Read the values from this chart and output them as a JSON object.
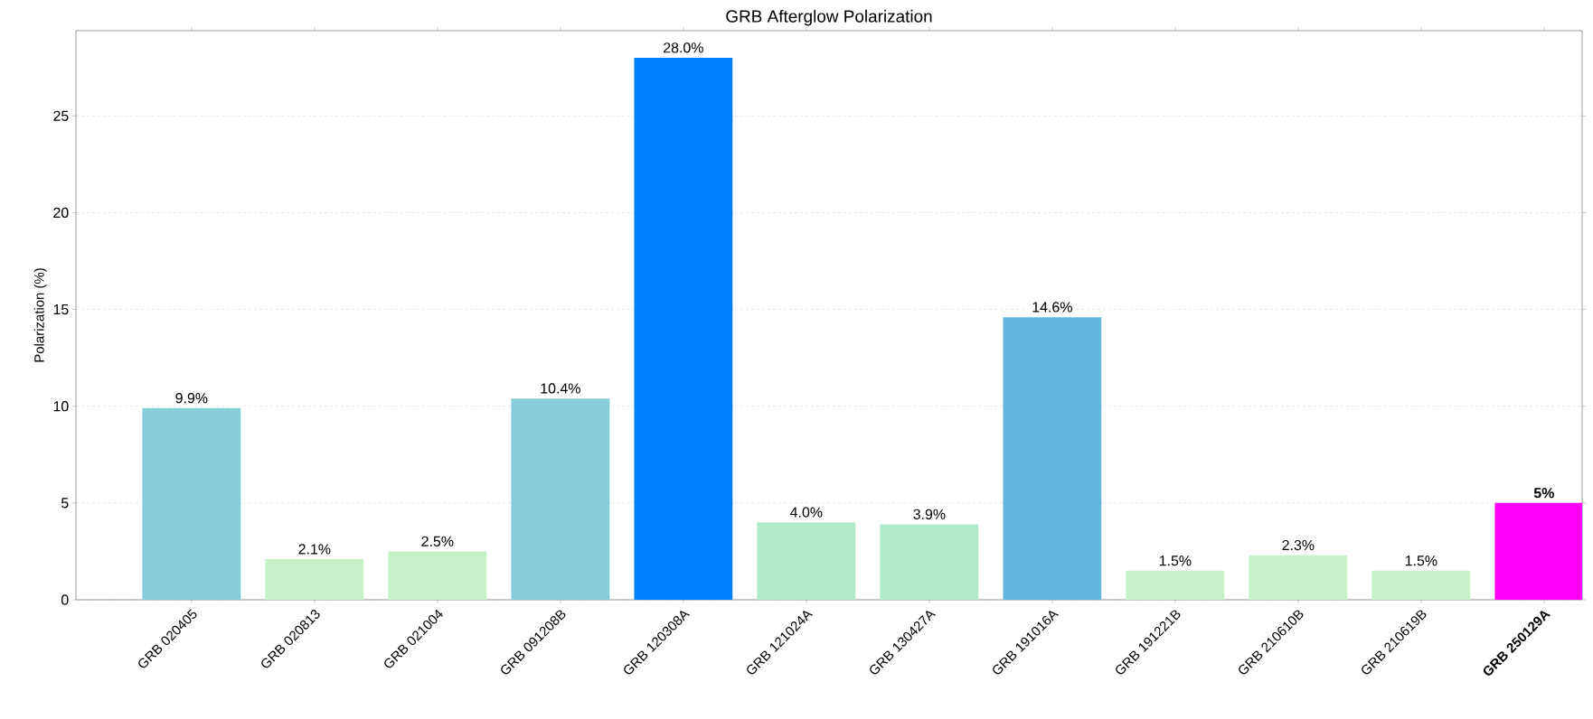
{
  "chart_data": {
    "type": "bar",
    "title": "GRB Afterglow Polarization",
    "ylabel": "Polarization (%)",
    "categories": [
      "GRB 020405",
      "GRB 020813",
      "GRB 021004",
      "GRB 091208B",
      "GRB 120308A",
      "GRB 121024A",
      "GRB 130427A",
      "GRB 191016A",
      "GRB 191221B",
      "GRB 210610B",
      "GRB 210619B",
      "**GRB 250129A**"
    ],
    "values": [
      9.9,
      2.1,
      2.5,
      10.4,
      28.0,
      4.0,
      3.9,
      14.6,
      1.5,
      2.3,
      1.5,
      5
    ],
    "value_labels": [
      "9.9%",
      "2.1%",
      "2.5%",
      "10.4%",
      "28.0%",
      "4.0%",
      "3.9%",
      "14.6%",
      "1.5%",
      "2.3%",
      "1.5%",
      "**5%**"
    ],
    "colors": [
      "#85ced9",
      "#c4f2c6",
      "#c4f2c6",
      "#85ced9",
      "#0080ff",
      "#b3e9cb",
      "#b3e9cb",
      "#62b8e0",
      "#c4f2c6",
      "#c4f2c6",
      "#c4f2c6",
      "#ff00ff"
    ],
    "ylim": [
      0,
      29.4
    ],
    "yticks": [
      0,
      5,
      10,
      15,
      20,
      25
    ],
    "grid": "y"
  }
}
